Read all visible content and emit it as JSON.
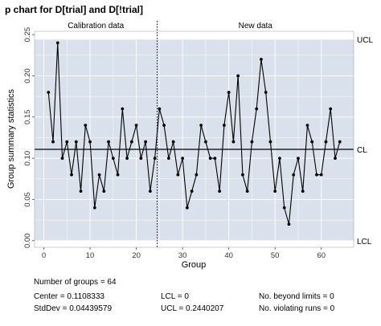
{
  "chart_data": {
    "type": "line",
    "title": "p chart for D[trial] and D[!trial]",
    "xlabel": "Group",
    "ylabel": "Group summary statistics",
    "xlim": [
      -2,
      67
    ],
    "ylim": [
      -0.008,
      0.254
    ],
    "xticks": [
      "0",
      "10",
      "20",
      "30",
      "40",
      "50",
      "60"
    ],
    "yticks": [
      "0.00",
      "0.05",
      "0.10",
      "0.15",
      "0.20",
      "0.25"
    ],
    "sections": [
      "Calibration data",
      "New data"
    ],
    "x": [
      1,
      2,
      3,
      4,
      5,
      6,
      7,
      8,
      9,
      10,
      11,
      12,
      13,
      14,
      15,
      16,
      17,
      18,
      19,
      20,
      21,
      22,
      23,
      24,
      25,
      26,
      27,
      28,
      29,
      30,
      31,
      32,
      33,
      34,
      35,
      36,
      37,
      38,
      39,
      40,
      41,
      42,
      43,
      44,
      45,
      46,
      47,
      48,
      49,
      50,
      51,
      52,
      53,
      54,
      55,
      56,
      57,
      58,
      59,
      60,
      61,
      62,
      63,
      64
    ],
    "series": [
      {
        "values": [
          0.18,
          0.12,
          0.24,
          0.1,
          0.12,
          0.08,
          0.12,
          0.06,
          0.14,
          0.12,
          0.04,
          0.08,
          0.06,
          0.12,
          0.1,
          0.08,
          0.16,
          0.1,
          0.12,
          0.14,
          0.1,
          0.12,
          0.06,
          0.1,
          0.16,
          0.14,
          0.1,
          0.12,
          0.08,
          0.1,
          0.04,
          0.06,
          0.08,
          0.14,
          0.12,
          0.1,
          0.1,
          0.06,
          0.14,
          0.18,
          0.12,
          0.2,
          0.08,
          0.06,
          0.12,
          0.16,
          0.22,
          0.18,
          0.12,
          0.06,
          0.1,
          0.04,
          0.02,
          0.08,
          0.1,
          0.06,
          0.14,
          0.12,
          0.08,
          0.08,
          0.12,
          0.16,
          0.1,
          0.12
        ]
      }
    ],
    "center_line": 0.1108333,
    "ucl": 0.2440207,
    "lcl": 0,
    "limit_labels": {
      "ucl": "UCL",
      "cl": "CL",
      "lcl": "LCL"
    },
    "calibration_end": 25,
    "grid": true,
    "colors": {
      "region": "#d9e2ec",
      "grid": "#ffffff",
      "line": "#000000",
      "background": "#ffffff"
    }
  },
  "stats": {
    "groups": "Number of groups = 64",
    "center": "Center = 0.1108333",
    "stddev": "StdDev = 0.04439579",
    "lcl": "LCL = 0",
    "ucl": "UCL = 0.2440207",
    "beyond": "No. beyond limits = 0",
    "violating": "No. violating runs = 0"
  }
}
